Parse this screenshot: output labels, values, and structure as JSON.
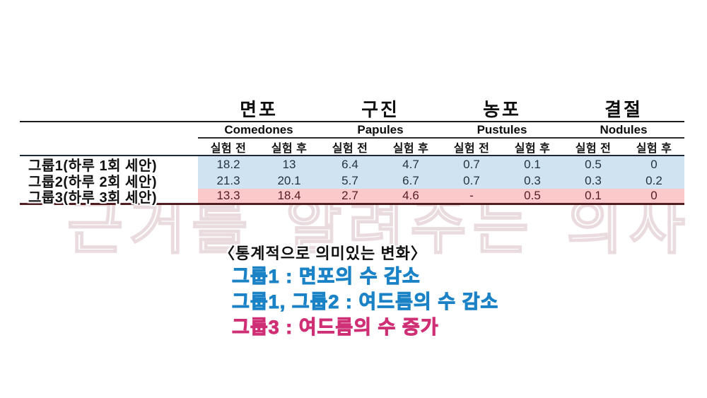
{
  "watermark": "근거를 알려주는 의사",
  "table": {
    "col_groups": [
      {
        "korean": "면포",
        "english": "Comedones"
      },
      {
        "korean": "구진",
        "english": "Papules"
      },
      {
        "korean": "농포",
        "english": "Pustules"
      },
      {
        "korean": "결절",
        "english": "Nodules"
      }
    ],
    "sub_headers": {
      "before": "실험 전",
      "after": "실험 후"
    },
    "rows": [
      {
        "label": "그룹1(하루 1회 세안)",
        "highlight": "blue",
        "values": [
          "18.2",
          "13",
          "6.4",
          "4.7",
          "0.7",
          "0.1",
          "0.5",
          "0"
        ]
      },
      {
        "label": "그룹2(하루 2회 세안)",
        "highlight": "blue",
        "values": [
          "21.3",
          "20.1",
          "5.7",
          "6.7",
          "0.7",
          "0.3",
          "0.3",
          "0.2"
        ]
      },
      {
        "label": "그룹3(하루 3회 세안)",
        "highlight": "pink",
        "values": [
          "13.3",
          "18.4",
          "2.7",
          "4.6",
          "-",
          "0.5",
          "0.1",
          "0"
        ]
      }
    ]
  },
  "notes": {
    "title": "〈통계적으로 의미있는 변화〉",
    "lines": [
      {
        "text": "그룹1 : 면포의 수 감소",
        "color": "#1b82c6"
      },
      {
        "text": "그룹1, 그룹2 : 여드름의 수 감소",
        "color": "#1b82c6"
      },
      {
        "text": "그룹3 : 여드름의 수 증가",
        "color": "#cf2f74"
      }
    ]
  },
  "colors": {
    "row_highlight_blue": "#cfe3f1",
    "row_highlight_pink": "#fbc9ca",
    "value_text_blue_rows": "#25323e",
    "value_text_pink_row": "#571c1f",
    "note_blue": "#1b82c6",
    "note_pink": "#cf2f74",
    "table_top_rule": "#1a1a1a",
    "table_bottom_rule": "#521d1f"
  },
  "chart_data": {
    "type": "table",
    "title": "",
    "column_groups": [
      {
        "korean": "면포",
        "english": "Comedones",
        "sub": [
          "실험 전",
          "실험 후"
        ]
      },
      {
        "korean": "구진",
        "english": "Papules",
        "sub": [
          "실험 전",
          "실험 후"
        ]
      },
      {
        "korean": "농포",
        "english": "Pustules",
        "sub": [
          "실험 전",
          "실험 후"
        ]
      },
      {
        "korean": "결절",
        "english": "Nodules",
        "sub": [
          "실험 전",
          "실험 후"
        ]
      }
    ],
    "rows": [
      {
        "group": "그룹1(하루 1회 세안)",
        "comedones": [
          18.2,
          13
        ],
        "papules": [
          6.4,
          4.7
        ],
        "pustules": [
          0.7,
          0.1
        ],
        "nodules": [
          0.5,
          0
        ]
      },
      {
        "group": "그룹2(하루 2회 세안)",
        "comedones": [
          21.3,
          20.1
        ],
        "papules": [
          5.7,
          6.7
        ],
        "pustules": [
          0.7,
          0.3
        ],
        "nodules": [
          0.3,
          0.2
        ]
      },
      {
        "group": "그룹3(하루 3회 세안)",
        "comedones": [
          13.3,
          18.4
        ],
        "papules": [
          2.7,
          4.6
        ],
        "pustules": [
          null,
          0.5
        ],
        "nodules": [
          0.1,
          0
        ]
      }
    ],
    "annotations": [
      "〈통계적으로 의미있는 변화〉",
      "그룹1 : 면포의 수 감소",
      "그룹1, 그룹2 : 여드름의 수 감소",
      "그룹3 : 여드름의 수 증가"
    ],
    "legend_position": "none",
    "grid": false
  }
}
